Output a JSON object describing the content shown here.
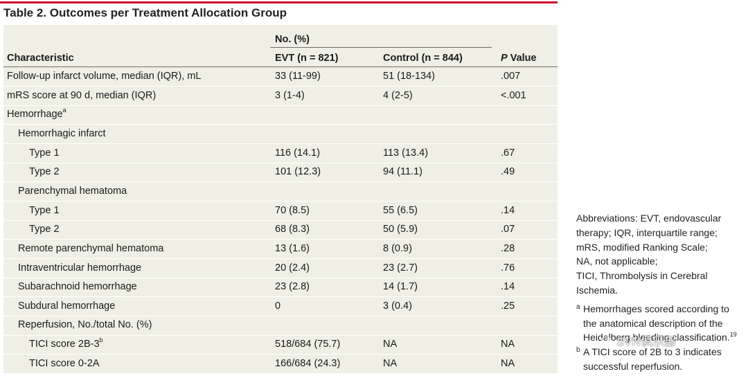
{
  "title": "Table 2. Outcomes per Treatment Allocation Group",
  "header": {
    "group_label": "No. (%)",
    "characteristic": "Characteristic",
    "evt": "EVT (n = 821)",
    "control": "Control (n = 844)",
    "p_italic": "P",
    "p_rest": " Value"
  },
  "rows": [
    {
      "label": "Follow-up infarct volume, median (IQR), mL",
      "evt": "33 (11-99)",
      "control": "51 (18-134)",
      "p": ".007"
    },
    {
      "label": "mRS score at 90 d, median (IQR)",
      "evt": "3 (1-4)",
      "control": "4 (2-5)",
      "p": "<.001"
    },
    {
      "label": "Hemorrhage",
      "sup": "a",
      "evt": "",
      "control": "",
      "p": ""
    },
    {
      "label": "Hemorrhagic infarct",
      "evt": "",
      "control": "",
      "p": ""
    },
    {
      "label": "Type 1",
      "evt": "116 (14.1)",
      "control": "113 (13.4)",
      "p": ".67"
    },
    {
      "label": "Type 2",
      "evt": "101 (12.3)",
      "control": "94 (11.1)",
      "p": ".49"
    },
    {
      "label": "Parenchymal hematoma",
      "evt": "",
      "control": "",
      "p": ""
    },
    {
      "label": "Type 1",
      "evt": "70 (8.5)",
      "control": "55 (6.5)",
      "p": ".14"
    },
    {
      "label": "Type 2",
      "evt": "68 (8.3)",
      "control": "50 (5.9)",
      "p": ".07"
    },
    {
      "label": "Remote parenchymal hematoma",
      "evt": "13 (1.6)",
      "control": "8 (0.9)",
      "p": ".28"
    },
    {
      "label": "Intraventricular hemorrhage",
      "evt": "20 (2.4)",
      "control": "23 (2.7)",
      "p": ".76"
    },
    {
      "label": "Subarachnoid hemorrhage",
      "evt": "23 (2.8)",
      "control": "14 (1.7)",
      "p": ".14"
    },
    {
      "label": "Subdural hemorrhage",
      "evt": "0",
      "control": "3 (0.4)",
      "p": ".25"
    },
    {
      "label": "Reperfusion, No./total No. (%)",
      "evt": "",
      "control": "",
      "p": ""
    },
    {
      "label": "TICI score 2B-3",
      "sup": "b",
      "evt": "518/684 (75.7)",
      "control": "NA",
      "p": "NA"
    },
    {
      "label": "TICI score 0-2A",
      "evt": "166/684 (24.3)",
      "control": "NA",
      "p": "NA"
    }
  ],
  "notes": {
    "abbreviations": [
      "Abbreviations: EVT, endovascular",
      "therapy; IQR, interquartile range;",
      "mRS, modified Ranking Scale;",
      "NA, not applicable;",
      "TICI, Thrombolysis in Cerebral",
      "Ischemia."
    ],
    "footnote_a_marker": "a",
    "footnote_a": [
      "Hemorrhages scored according to",
      "the anatomical description of the",
      "Heidelberg bleeding classification."
    ],
    "footnote_a_ref": "19",
    "footnote_b_marker": "b",
    "footnote_b": [
      "A TICI score of 2B to 3 indicates",
      "successful reperfusion."
    ]
  },
  "watermark": "SVN俱乐部"
}
